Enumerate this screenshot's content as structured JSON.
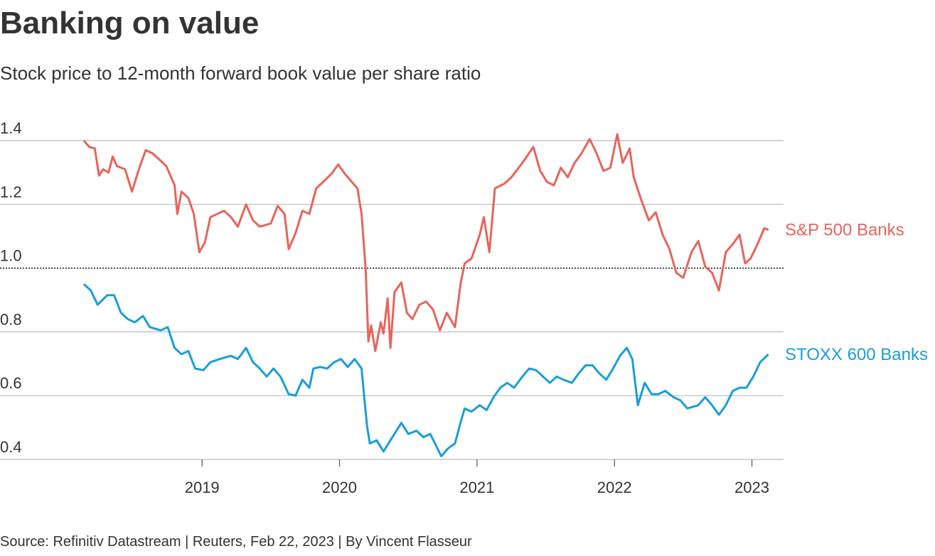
{
  "chart_data": {
    "type": "line",
    "title": "Banking on value",
    "subtitle": "Stock price to 12-month forward book value per share ratio",
    "source": "Source: Refinitiv Datastream | Reuters, Feb 22, 2023 | By Vincent Flasseur",
    "xlim": [
      2017.53,
      2023.23
    ],
    "xticks": [
      2019,
      2020,
      2021,
      2022,
      2023
    ],
    "ylim": [
      0.4,
      1.4
    ],
    "yticks": [
      1.4,
      1.2,
      {
        "value": 1,
        "label": "1.0"
      },
      0.8,
      0.6,
      0.4
    ],
    "grid": true,
    "baseline": 1,
    "series": [
      {
        "name": "S&P 500 Banks",
        "color": "#e8645a",
        "x": [
          2018.14,
          2018.18,
          2018.22,
          2018.25,
          2018.28,
          2018.32,
          2018.35,
          2018.38,
          2018.44,
          2018.49,
          2018.54,
          2018.59,
          2018.64,
          2018.69,
          2018.74,
          2018.8,
          2018.82,
          2018.85,
          2018.9,
          2018.94,
          2018.98,
          2019.02,
          2019.06,
          2019.11,
          2019.16,
          2019.21,
          2019.26,
          2019.32,
          2019.37,
          2019.42,
          2019.5,
          2019.55,
          2019.6,
          2019.63,
          2019.68,
          2019.73,
          2019.78,
          2019.83,
          2019.88,
          2019.94,
          2019.99,
          2020.04,
          2020.09,
          2020.13,
          2020.16,
          2020.19,
          2020.21,
          2020.23,
          2020.26,
          2020.3,
          2020.32,
          2020.35,
          2020.37,
          2020.4,
          2020.45,
          2020.49,
          2020.53,
          2020.58,
          2020.63,
          2020.68,
          2020.73,
          2020.78,
          2020.84,
          2020.88,
          2020.91,
          2020.96,
          2021.02,
          2021.05,
          2021.09,
          2021.13,
          2021.2,
          2021.25,
          2021.33,
          2021.41,
          2021.46,
          2021.51,
          2021.56,
          2021.61,
          2021.66,
          2021.71,
          2021.76,
          2021.82,
          2021.87,
          2021.92,
          2021.97,
          2022.02,
          2022.06,
          2022.11,
          2022.14,
          2022.19,
          2022.25,
          2022.3,
          2022.35,
          2022.4,
          2022.45,
          2022.5,
          2022.56,
          2022.61,
          2022.66,
          2022.71,
          2022.76,
          2022.81,
          2022.86,
          2022.91,
          2022.95,
          2022.99,
          2023.04,
          2023.09,
          2023.12
        ],
        "values": [
          1.4,
          1.38,
          1.375,
          1.29,
          1.31,
          1.3,
          1.35,
          1.32,
          1.31,
          1.24,
          1.31,
          1.37,
          1.36,
          1.34,
          1.32,
          1.26,
          1.17,
          1.24,
          1.22,
          1.17,
          1.05,
          1.08,
          1.16,
          1.17,
          1.18,
          1.16,
          1.13,
          1.2,
          1.15,
          1.13,
          1.14,
          1.195,
          1.17,
          1.06,
          1.11,
          1.18,
          1.17,
          1.25,
          1.27,
          1.295,
          1.325,
          1.295,
          1.27,
          1.25,
          1.17,
          0.995,
          0.77,
          0.82,
          0.74,
          0.83,
          0.795,
          0.905,
          0.75,
          0.925,
          0.955,
          0.86,
          0.84,
          0.885,
          0.895,
          0.87,
          0.805,
          0.86,
          0.815,
          0.95,
          1.015,
          1.03,
          1.105,
          1.16,
          1.05,
          1.25,
          1.265,
          1.285,
          1.33,
          1.38,
          1.305,
          1.27,
          1.26,
          1.315,
          1.285,
          1.33,
          1.36,
          1.405,
          1.36,
          1.305,
          1.315,
          1.42,
          1.33,
          1.375,
          1.285,
          1.22,
          1.15,
          1.175,
          1.105,
          1.06,
          0.985,
          0.97,
          1.05,
          1.085,
          1.005,
          0.985,
          0.93,
          1.05,
          1.075,
          1.105,
          1.015,
          1.03,
          1.075,
          1.125,
          1.12
        ]
      },
      {
        "name": "STOXX 600 Banks",
        "color": "#1a9ddb",
        "x": [
          2018.14,
          2018.19,
          2018.24,
          2018.31,
          2018.36,
          2018.41,
          2018.46,
          2018.51,
          2018.57,
          2018.62,
          2018.7,
          2018.75,
          2018.8,
          2018.85,
          2018.9,
          2018.95,
          2019.01,
          2019.06,
          2019.13,
          2019.21,
          2019.26,
          2019.32,
          2019.37,
          2019.42,
          2019.47,
          2019.52,
          2019.57,
          2019.63,
          2019.68,
          2019.73,
          2019.78,
          2019.81,
          2019.86,
          2019.91,
          2019.96,
          2020.01,
          2020.06,
          2020.11,
          2020.16,
          2020.18,
          2020.2,
          2020.22,
          2020.27,
          2020.32,
          2020.37,
          2020.45,
          2020.5,
          2020.56,
          2020.61,
          2020.66,
          2020.74,
          2020.79,
          2020.84,
          2020.88,
          2020.91,
          2020.96,
          2021.02,
          2021.07,
          2021.12,
          2021.17,
          2021.22,
          2021.27,
          2021.33,
          2021.38,
          2021.43,
          2021.48,
          2021.53,
          2021.58,
          2021.63,
          2021.69,
          2021.74,
          2021.79,
          2021.84,
          2021.89,
          2021.94,
          2021.99,
          2022.04,
          2022.09,
          2022.13,
          2022.17,
          2022.22,
          2022.27,
          2022.32,
          2022.37,
          2022.43,
          2022.48,
          2022.53,
          2022.61,
          2022.66,
          2022.71,
          2022.76,
          2022.81,
          2022.86,
          2022.91,
          2022.96,
          2023.01,
          2023.06,
          2023.12
        ],
        "values": [
          0.95,
          0.93,
          0.885,
          0.915,
          0.915,
          0.86,
          0.84,
          0.83,
          0.85,
          0.815,
          0.805,
          0.815,
          0.75,
          0.73,
          0.74,
          0.685,
          0.68,
          0.705,
          0.715,
          0.725,
          0.715,
          0.75,
          0.705,
          0.685,
          0.66,
          0.685,
          0.66,
          0.605,
          0.6,
          0.65,
          0.625,
          0.685,
          0.69,
          0.685,
          0.705,
          0.715,
          0.69,
          0.715,
          0.685,
          0.595,
          0.505,
          0.45,
          0.46,
          0.425,
          0.46,
          0.515,
          0.48,
          0.49,
          0.47,
          0.48,
          0.41,
          0.435,
          0.45,
          0.515,
          0.56,
          0.55,
          0.57,
          0.555,
          0.595,
          0.625,
          0.64,
          0.625,
          0.66,
          0.685,
          0.68,
          0.66,
          0.64,
          0.66,
          0.65,
          0.64,
          0.67,
          0.695,
          0.695,
          0.67,
          0.65,
          0.685,
          0.725,
          0.75,
          0.715,
          0.57,
          0.64,
          0.605,
          0.605,
          0.615,
          0.595,
          0.585,
          0.56,
          0.57,
          0.595,
          0.57,
          0.54,
          0.57,
          0.615,
          0.625,
          0.625,
          0.66,
          0.705,
          0.73
        ]
      }
    ]
  }
}
